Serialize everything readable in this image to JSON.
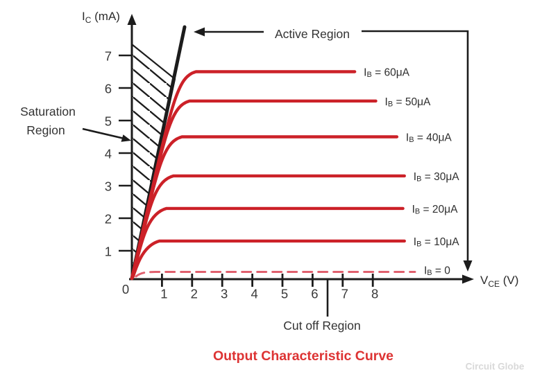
{
  "title": "Output Characteristic Curve",
  "watermark": "Circuit Globe",
  "colors": {
    "curve_red": "#cc2128",
    "dashed_red": "#e0606e",
    "title_red": "#dd3333",
    "line_black": "#1c1c1c",
    "watermark_gray": "#d9d9d9"
  },
  "chart_data": {
    "type": "line",
    "title": "Output Characteristic Curve",
    "xlabel": {
      "pre": "V",
      "sub": "CE",
      "post": " (V)"
    },
    "ylabel": {
      "pre": "I",
      "sub": "C",
      "post": " (mA)"
    },
    "x_ticks": [
      1,
      2,
      3,
      4,
      5,
      6,
      7,
      8
    ],
    "y_ticks": [
      1,
      2,
      3,
      4,
      5,
      6,
      7
    ],
    "origin_label": "0",
    "xlim": [
      0,
      11
    ],
    "ylim": [
      0,
      8
    ],
    "grid": false,
    "legend_position": "right-of-each-curve",
    "series": [
      {
        "name": "IB = 60uA",
        "ib_uA": 60,
        "ic_sat_mA": 6.5,
        "vce_end": 7.4,
        "dashed": false,
        "label": {
          "pre": "I",
          "sub": "B",
          "post": " = 60μA"
        }
      },
      {
        "name": "IB = 50uA",
        "ib_uA": 50,
        "ic_sat_mA": 5.6,
        "vce_end": 8.1,
        "dashed": false,
        "label": {
          "pre": "I",
          "sub": "B",
          "post": " = 50μA"
        }
      },
      {
        "name": "IB = 40uA",
        "ib_uA": 40,
        "ic_sat_mA": 4.5,
        "vce_end": 8.8,
        "dashed": false,
        "label": {
          "pre": "I",
          "sub": "B",
          "post": " = 40μA"
        }
      },
      {
        "name": "IB = 30uA",
        "ib_uA": 30,
        "ic_sat_mA": 3.3,
        "vce_end": 9.05,
        "dashed": false,
        "label": {
          "pre": "I",
          "sub": "B",
          "post": " = 30μA"
        }
      },
      {
        "name": "IB = 20uA",
        "ib_uA": 20,
        "ic_sat_mA": 2.3,
        "vce_end": 9.0,
        "dashed": false,
        "label": {
          "pre": "I",
          "sub": "B",
          "post": " = 20μA"
        }
      },
      {
        "name": "IB = 10uA",
        "ib_uA": 10,
        "ic_sat_mA": 1.3,
        "vce_end": 9.05,
        "dashed": false,
        "label": {
          "pre": "I",
          "sub": "B",
          "post": " = 10μA"
        }
      },
      {
        "name": "IB = 0",
        "ib_uA": 0,
        "ic_sat_mA": 0.35,
        "vce_end": 9.4,
        "dashed": true,
        "label": {
          "pre": "I",
          "sub": "B",
          "post": " = 0"
        }
      }
    ],
    "annotations": {
      "active_region": "Active Region",
      "saturation_line1": "Saturation",
      "saturation_line2": "Region",
      "cutoff_region": "Cut off Region"
    }
  }
}
